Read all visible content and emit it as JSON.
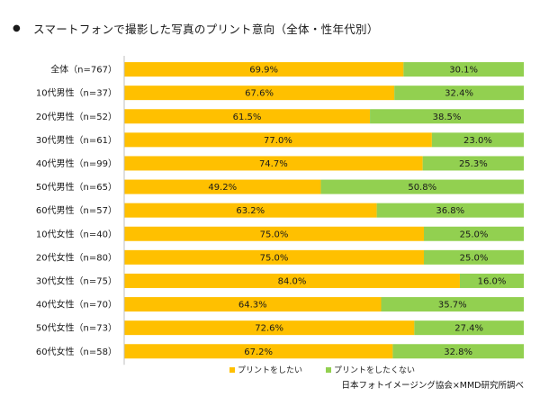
{
  "chart_data": {
    "type": "bar",
    "orientation": "horizontal",
    "stacked": true,
    "title": "スマートフォンで撮影した写真のプリント意向（全体・性年代別）",
    "categories": [
      "全体（n=767）",
      "10代男性（n=37）",
      "20代男性（n=52）",
      "30代男性（n=61）",
      "40代男性（n=99）",
      "50代男性（n=65）",
      "60代男性（n=57）",
      "10代女性（n=40）",
      "20代女性（n=80）",
      "30代女性（n=75）",
      "40代女性（n=70）",
      "50代女性（n=73）",
      "60代女性（n=58）"
    ],
    "series": [
      {
        "name": "プリントをしたい",
        "color": "#FFC000",
        "values": [
          69.9,
          67.6,
          61.5,
          77.0,
          74.7,
          49.2,
          63.2,
          75.0,
          75.0,
          84.0,
          64.3,
          72.6,
          67.2
        ]
      },
      {
        "name": "プリントをしたくない",
        "color": "#92D050",
        "values": [
          30.1,
          32.4,
          38.5,
          23.0,
          25.3,
          50.8,
          36.8,
          25.0,
          25.0,
          16.0,
          35.7,
          27.4,
          32.8
        ]
      }
    ],
    "xlim": [
      0,
      100
    ],
    "value_suffix": "%",
    "legend_position": "bottom",
    "source": "日本フォトイメージング協会×MMD研究所調べ"
  }
}
